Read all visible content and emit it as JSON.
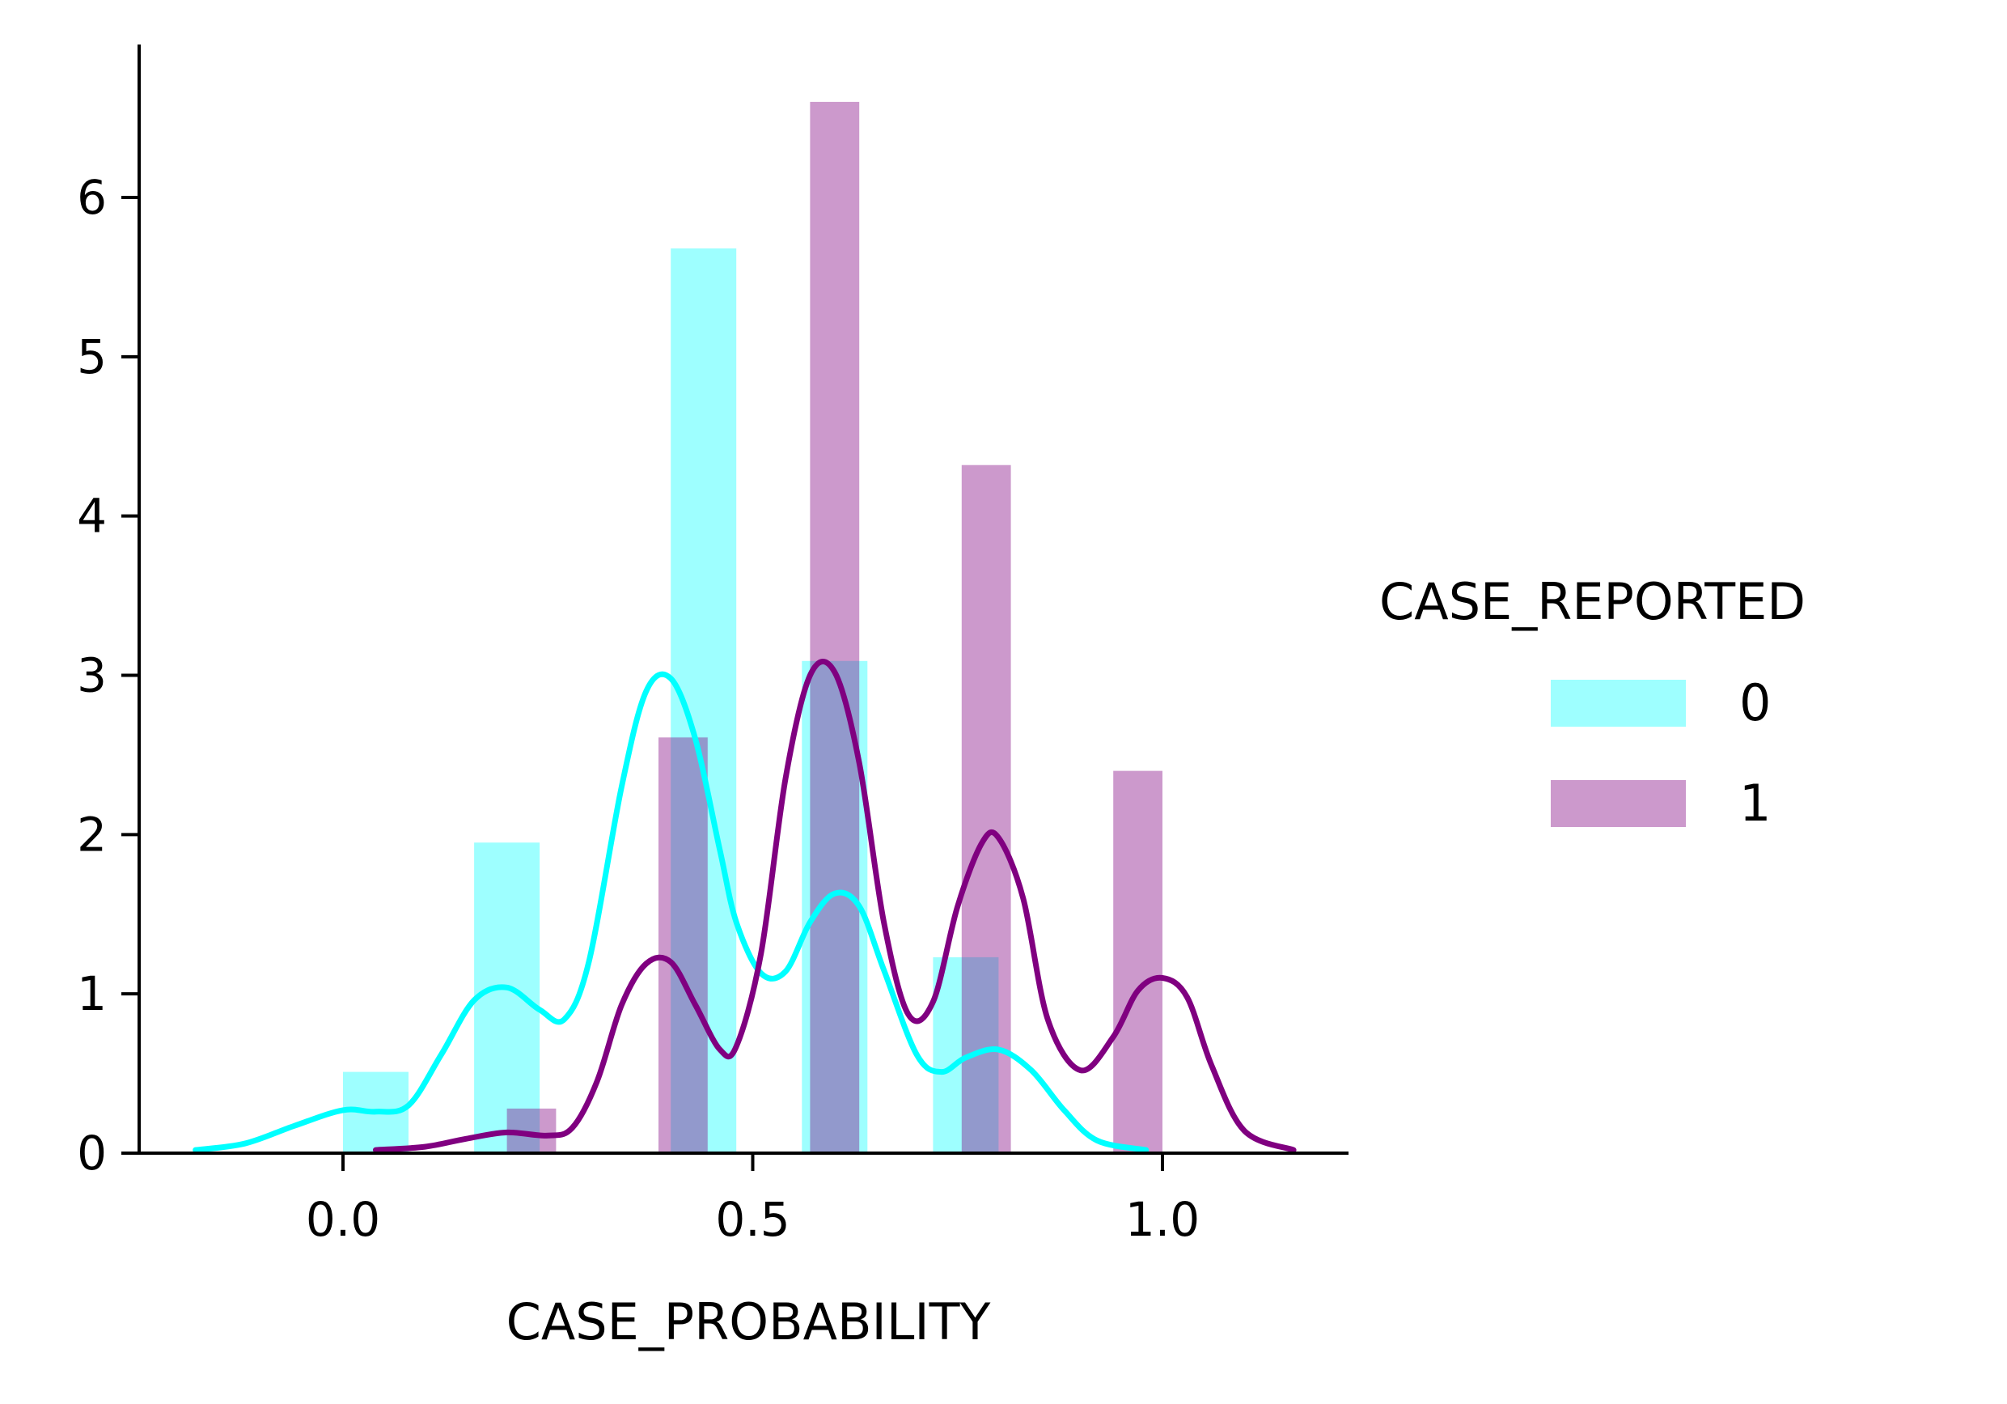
{
  "chart_data": {
    "type": "bar",
    "subtype": "histogram with kde",
    "xlabel": "CASE_PROBABILITY",
    "ylabel": "",
    "xlim": [
      -0.25,
      1.23
    ],
    "ylim": [
      0,
      6.95
    ],
    "xticks": [
      0.0,
      0.5,
      1.0
    ],
    "xtick_labels": [
      "0.0",
      "0.5",
      "1.0"
    ],
    "yticks": [
      0,
      1,
      2,
      3,
      4,
      5,
      6
    ],
    "ytick_labels": [
      "0",
      "1",
      "2",
      "3",
      "4",
      "5",
      "6"
    ],
    "grid": false,
    "legend": {
      "title": "CASE_REPORTED",
      "placement": "right",
      "entries": [
        {
          "label": "0",
          "color": "#00ffff"
        },
        {
          "label": "1",
          "color": "#800080"
        }
      ]
    },
    "series": [
      {
        "name": "0",
        "color": "#00ffff",
        "bar_opacity": 0.38,
        "bins": [
          {
            "x0": 0.0,
            "x1": 0.08,
            "value": 0.51
          },
          {
            "x0": 0.16,
            "x1": 0.24,
            "value": 1.95
          },
          {
            "x0": 0.4,
            "x1": 0.48,
            "value": 5.68
          },
          {
            "x0": 0.56,
            "x1": 0.64,
            "value": 3.09
          },
          {
            "x0": 0.72,
            "x1": 0.8,
            "value": 1.23
          }
        ],
        "kde": {
          "x": [
            -0.18,
            -0.12,
            -0.06,
            0.0,
            0.04,
            0.08,
            0.12,
            0.16,
            0.2,
            0.24,
            0.27,
            0.3,
            0.34,
            0.37,
            0.4,
            0.43,
            0.46,
            0.48,
            0.51,
            0.54,
            0.57,
            0.6,
            0.63,
            0.66,
            0.7,
            0.73,
            0.76,
            0.8,
            0.84,
            0.88,
            0.92,
            0.98
          ],
          "y": [
            0.02,
            0.06,
            0.17,
            0.27,
            0.26,
            0.3,
            0.62,
            0.96,
            1.04,
            0.9,
            0.84,
            1.2,
            2.3,
            2.9,
            2.98,
            2.6,
            1.9,
            1.45,
            1.13,
            1.14,
            1.45,
            1.63,
            1.55,
            1.15,
            0.62,
            0.51,
            0.6,
            0.65,
            0.52,
            0.27,
            0.08,
            0.02
          ]
        }
      },
      {
        "name": "1",
        "color": "#800080",
        "bar_opacity": 0.4,
        "bins": [
          {
            "x0": 0.2,
            "x1": 0.26,
            "value": 0.28
          },
          {
            "x0": 0.385,
            "x1": 0.445,
            "value": 2.61
          },
          {
            "x0": 0.57,
            "x1": 0.63,
            "value": 6.6
          },
          {
            "x0": 0.755,
            "x1": 0.815,
            "value": 4.32
          },
          {
            "x0": 0.94,
            "x1": 1.0,
            "value": 2.4
          }
        ],
        "kde": {
          "x": [
            0.04,
            0.1,
            0.15,
            0.2,
            0.25,
            0.28,
            0.31,
            0.34,
            0.37,
            0.4,
            0.43,
            0.46,
            0.48,
            0.51,
            0.54,
            0.57,
            0.6,
            0.63,
            0.66,
            0.69,
            0.72,
            0.75,
            0.78,
            0.8,
            0.83,
            0.86,
            0.9,
            0.94,
            0.97,
            1.0,
            1.03,
            1.06,
            1.1,
            1.16
          ],
          "y": [
            0.02,
            0.04,
            0.09,
            0.13,
            0.11,
            0.16,
            0.45,
            0.93,
            1.19,
            1.2,
            0.93,
            0.65,
            0.67,
            1.25,
            2.35,
            3.0,
            3.02,
            2.45,
            1.45,
            0.87,
            0.95,
            1.55,
            1.95,
            1.98,
            1.6,
            0.84,
            0.52,
            0.73,
            1.02,
            1.1,
            0.98,
            0.55,
            0.14,
            0.02
          ]
        }
      }
    ]
  }
}
